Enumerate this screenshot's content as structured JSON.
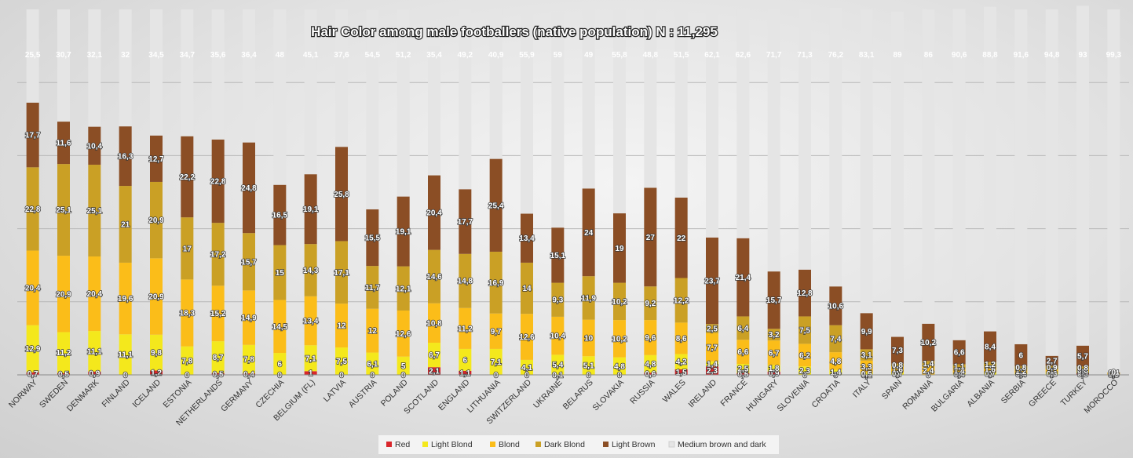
{
  "chart_data": {
    "type": "bar",
    "stacked": true,
    "title": "Hair Color among male footballers (native population) N : 11,295",
    "xlabel": "",
    "ylabel": "",
    "ylim": [
      0,
      100
    ],
    "grid": true,
    "legend_position": "bottom",
    "categories": [
      "NORWAY",
      "SWEDEN",
      "DENMARK",
      "FINLAND",
      "ICELAND",
      "ESTONIA",
      "NETHERLANDS",
      "GERMANY",
      "CZECHIA",
      "BELGIUM (FL)",
      "LATVIA",
      "AUSTRIA",
      "POLAND",
      "SCOTLAND",
      "ENGLAND",
      "LITHUANIA",
      "SWITZERLAND",
      "UKRAINE",
      "BELARUS",
      "SLOVAKIA",
      "RUSSIA",
      "WALES",
      "IRELAND",
      "FRANCE",
      "HUNGARY",
      "SLOVENIA",
      "CROATIA",
      "ITALY",
      "SPAIN",
      "ROMANIA",
      "BULGARIA",
      "ALBANIA",
      "SERBIA",
      "GREECE",
      "TURKEY",
      "MOROCCO"
    ],
    "series": [
      {
        "name": "Red",
        "color": "#d9262b",
        "values": [
          0.7,
          0.5,
          0.9,
          0,
          1.2,
          0,
          0.5,
          0.4,
          0,
          1,
          0,
          0,
          0,
          2.1,
          1.1,
          0,
          0,
          0.1,
          0,
          0,
          0.6,
          1.5,
          2.3,
          0.5,
          0.9,
          0,
          0,
          0.1,
          0,
          0,
          0,
          0,
          0,
          0,
          0.5,
          0
        ]
      },
      {
        "name": "Light Blond",
        "color": "#f4e81c",
        "values": [
          12.9,
          11.2,
          11.1,
          11.1,
          9.8,
          7.8,
          8.7,
          7.8,
          6,
          7.1,
          7.5,
          6.1,
          5,
          6.7,
          6,
          7.1,
          4.1,
          5.4,
          5.1,
          4.8,
          4.8,
          4.2,
          1.4,
          2.5,
          1.8,
          2.3,
          1.4,
          0.5,
          0.7,
          0,
          0.4,
          0.7,
          0.4,
          0.6,
          0.4,
          0
        ]
      },
      {
        "name": "Blond",
        "color": "#fbbd19",
        "values": [
          20.4,
          20.9,
          20.4,
          19.6,
          20.9,
          18.3,
          15.2,
          14.9,
          14.5,
          13.4,
          12,
          12,
          12.6,
          10.8,
          11.2,
          9.7,
          12.6,
          10.4,
          10,
          10.2,
          9.6,
          8.6,
          7.7,
          6.6,
          6.7,
          6.2,
          4.8,
          3.3,
          1.6,
          2.4,
          1.4,
          1.6,
          1.2,
          1,
          0.6,
          0.3
        ]
      },
      {
        "name": "Dark Blond",
        "color": "#caa025",
        "values": [
          22.8,
          25.1,
          25.1,
          21,
          20.9,
          17,
          17.2,
          15.7,
          15,
          14.3,
          17.1,
          11.7,
          12.1,
          14.6,
          14.8,
          16.9,
          14,
          9.3,
          11.9,
          10.2,
          9.2,
          12.2,
          2.5,
          6.4,
          3.2,
          7.5,
          7.4,
          3.1,
          0.8,
          1.4,
          1.1,
          1.2,
          0.8,
          0.9,
          0.8,
          0.4
        ]
      },
      {
        "name": "Light Brown",
        "color": "#8b4e25",
        "values": [
          17.7,
          11.6,
          10.4,
          16.3,
          12.7,
          22.2,
          22.8,
          24.8,
          16.5,
          19.1,
          25.8,
          15.5,
          19.1,
          20.4,
          17.7,
          25.4,
          13.4,
          15.1,
          24,
          19,
          27,
          22,
          23.7,
          21.4,
          15.7,
          12.8,
          10.6,
          9.9,
          7.3,
          10.2,
          6.6,
          8.4,
          6,
          2.7,
          5.7,
          0
        ]
      },
      {
        "name": "Medium brown and dark",
        "color": "#e5e5e5",
        "values": [
          25.5,
          30.7,
          32.1,
          32,
          34.5,
          34.7,
          35.6,
          36.4,
          48,
          45.1,
          37.6,
          54.5,
          51.2,
          35.4,
          49.2,
          40.9,
          55.9,
          59,
          49,
          55.8,
          48.8,
          51.5,
          62.1,
          62.6,
          71.7,
          71.3,
          76.2,
          83.1,
          89,
          86,
          90.6,
          88.8,
          91.6,
          94.8,
          93,
          99.3
        ]
      }
    ]
  }
}
